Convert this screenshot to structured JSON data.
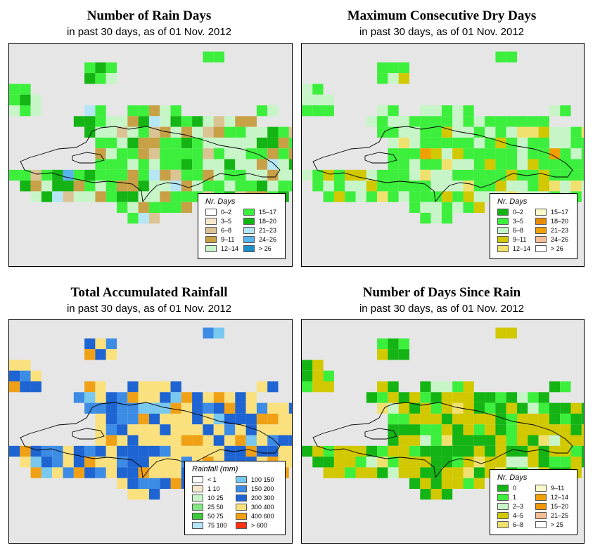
{
  "panels": [
    {
      "id": "rain-days",
      "title": "Number of Rain Days",
      "subtitle": "in past 30 days, as of  01 Nov. 2012",
      "legend": {
        "title": "Nr. Days",
        "items": [
          {
            "label": "0–2",
            "color": "#ffffff"
          },
          {
            "label": "3–5",
            "color": "#f3e7cc"
          },
          {
            "label": "6–8",
            "color": "#dcc394"
          },
          {
            "label": "9–11",
            "color": "#c8a046"
          },
          {
            "label": "12–14",
            "color": "#c8f5c8"
          },
          {
            "label": "15–17",
            "color": "#3cef3c"
          },
          {
            "label": "18–20",
            "color": "#14b414"
          },
          {
            "label": "21–23",
            "color": "#b4e6f5"
          },
          {
            "label": "24–26",
            "color": "#5ab4ec"
          },
          {
            "label": "> 26",
            "color": "#1e90c8"
          }
        ]
      }
    },
    {
      "id": "max-consecutive-dry-days",
      "title": "Maximum Consecutive Dry Days",
      "subtitle": "in past 30 days, as of  01 Nov. 2012",
      "legend": {
        "title": "Nr. Days",
        "items": [
          {
            "label": "0–2",
            "color": "#14b414"
          },
          {
            "label": "3–5",
            "color": "#3cef3c"
          },
          {
            "label": "6–8",
            "color": "#c8f5c8"
          },
          {
            "label": "9–11",
            "color": "#d2c800"
          },
          {
            "label": "12–14",
            "color": "#f0e16e"
          },
          {
            "label": "15–17",
            "color": "#fafac8"
          },
          {
            "label": "18–20",
            "color": "#e68c00"
          },
          {
            "label": "21–23",
            "color": "#f0a000"
          },
          {
            "label": "24–26",
            "color": "#f5be96"
          },
          {
            "label": "> 26",
            "color": "#ffffff"
          }
        ]
      }
    },
    {
      "id": "total-accumulated-rainfall",
      "title": "Total Accumulated Rainfall",
      "subtitle": "in past 30 days, as of  01 Nov. 2012",
      "legend": {
        "title": "Rainfall (mm)",
        "items": [
          {
            "label": "< 1",
            "color": "#ffffff"
          },
          {
            "label": "1    10",
            "color": "#f3e7cc"
          },
          {
            "label": "10    25",
            "color": "#c8f5c8"
          },
          {
            "label": "25    50",
            "color": "#82e682"
          },
          {
            "label": "50    75",
            "color": "#3cc83c"
          },
          {
            "label": "75   100",
            "color": "#b4e6f5"
          },
          {
            "label": "100   150",
            "color": "#78c8f0"
          },
          {
            "label": "150   200",
            "color": "#3c8ce6"
          },
          {
            "label": "200   300",
            "color": "#1e64d2"
          },
          {
            "label": "300   400",
            "color": "#fae17d"
          },
          {
            "label": "400   600",
            "color": "#f0a014"
          },
          {
            "label": "> 600",
            "color": "#ff3214"
          }
        ]
      }
    },
    {
      "id": "days-since-rain",
      "title": "Number of Days Since Rain",
      "subtitle": "in past 30 days, as of  01 Nov. 2012",
      "legend": {
        "title": "Nr. Days",
        "items": [
          {
            "label": "0",
            "color": "#14b414"
          },
          {
            "label": "1",
            "color": "#3cef3c"
          },
          {
            "label": "2–3",
            "color": "#c8f5c8"
          },
          {
            "label": "4–5",
            "color": "#d2c800"
          },
          {
            "label": "6–8",
            "color": "#f0e16e"
          },
          {
            "label": "9–11",
            "color": "#fafac8"
          },
          {
            "label": "12–14",
            "color": "#f0a000"
          },
          {
            "label": "15–20",
            "color": "#f09600"
          },
          {
            "label": "21–25",
            "color": "#f5be96"
          },
          {
            "label": "> 25",
            "color": "#ffffff"
          }
        ]
      }
    }
  ]
}
